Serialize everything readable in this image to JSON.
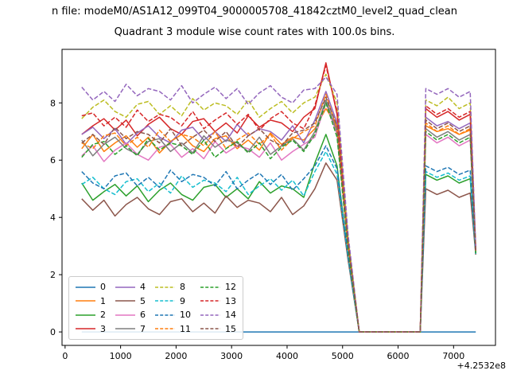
{
  "figure": {
    "suptitle": "n file: modeM0/AS1A12_099T04_9000005708_41842cztM0_level2_quad_clean",
    "title": "Quadrant 3 module wise count rates with 100.0s bins.",
    "background_color": "#ffffff"
  },
  "axes": {
    "x_ticks": [
      0,
      1000,
      2000,
      3000,
      4000,
      5000,
      6000,
      7000
    ],
    "x_tick_labels": [
      "0",
      "1000",
      "2000",
      "3000",
      "4000",
      "5000",
      "6000",
      "7000"
    ],
    "y_ticks": [
      0,
      2,
      4,
      6,
      8
    ],
    "y_tick_labels": [
      "0",
      "2",
      "4",
      "6",
      "8"
    ],
    "x_offset_label": "+4.2532e8",
    "spine_color": "#000000",
    "tick_color": "#000000"
  },
  "legend": {
    "columns": 4,
    "row_count": 4,
    "border_color": "#cccccc"
  },
  "chart_data": {
    "type": "line",
    "title": "Quadrant 3 module wise count rates with 100.0s bins.",
    "xlabel": "",
    "ylabel": "",
    "x_offset": "+4.2532e8",
    "xlim": [
      -55,
      7755
    ],
    "ylim": [
      -0.47,
      9.87
    ],
    "grid": false,
    "legend_position": "lower left",
    "x": [
      300,
      500,
      700,
      900,
      1100,
      1300,
      1500,
      1700,
      1900,
      2100,
      2300,
      2500,
      2700,
      2900,
      3100,
      3300,
      3500,
      3700,
      3900,
      4100,
      4300,
      4500,
      4700,
      4900,
      5100,
      5300,
      5500,
      5700,
      5900,
      6100,
      6300,
      6400,
      6500,
      6700,
      6900,
      7100,
      7300,
      7400
    ],
    "series": [
      {
        "name": "0",
        "color": "#1f77b4",
        "linestyle": "solid",
        "values": [
          0,
          0,
          0,
          0,
          0,
          0,
          0,
          0,
          0,
          0,
          0,
          0,
          0,
          0,
          0,
          0,
          0,
          0,
          0,
          0,
          0,
          0,
          0,
          0,
          0,
          0,
          0,
          0,
          0,
          0,
          0,
          0,
          0,
          0,
          0,
          0,
          0,
          0
        ]
      },
      {
        "name": "1",
        "color": "#ff7f0e",
        "linestyle": "solid",
        "values": [
          6.4,
          6.9,
          6.3,
          6.6,
          6.85,
          6.45,
          6.8,
          6.25,
          6.65,
          6.9,
          6.5,
          6.3,
          6.75,
          6.85,
          6.4,
          6.7,
          6.35,
          6.95,
          6.55,
          6.8,
          6.7,
          7.1,
          7.8,
          7.2,
          3.0,
          0,
          0,
          0,
          0,
          0,
          0,
          0,
          7.2,
          7.0,
          7.1,
          6.9,
          7.05,
          2.8
        ]
      },
      {
        "name": "2",
        "color": "#2ca02c",
        "linestyle": "solid",
        "values": [
          5.2,
          4.6,
          4.9,
          5.15,
          4.75,
          5.1,
          4.55,
          4.95,
          5.2,
          4.8,
          4.6,
          5.05,
          5.15,
          4.7,
          5.0,
          4.65,
          5.25,
          4.85,
          5.1,
          5.0,
          4.7,
          5.9,
          6.9,
          5.8,
          2.6,
          0,
          0,
          0,
          0,
          0,
          0,
          0,
          5.5,
          5.3,
          5.45,
          5.2,
          5.35,
          2.75
        ]
      },
      {
        "name": "3",
        "color": "#d62728",
        "linestyle": "solid",
        "values": [
          6.9,
          7.2,
          7.45,
          7.05,
          7.4,
          6.85,
          7.25,
          7.5,
          7.1,
          6.9,
          7.35,
          7.45,
          7.0,
          7.3,
          6.95,
          7.55,
          7.15,
          7.4,
          7.3,
          7.0,
          7.5,
          7.8,
          9.4,
          7.6,
          3.2,
          0,
          0,
          0,
          0,
          0,
          0,
          0,
          7.8,
          7.5,
          7.7,
          7.4,
          7.6,
          2.85
        ]
      },
      {
        "name": "4",
        "color": "#9467bd",
        "linestyle": "solid",
        "values": [
          6.9,
          7.15,
          6.75,
          7.1,
          6.55,
          6.95,
          7.2,
          6.8,
          6.6,
          7.05,
          7.15,
          6.7,
          7.0,
          6.65,
          7.25,
          6.85,
          7.1,
          7.0,
          6.7,
          7.2,
          6.6,
          7.4,
          8.4,
          7.3,
          3.0,
          0,
          0,
          0,
          0,
          0,
          0,
          0,
          7.5,
          7.2,
          7.35,
          7.1,
          7.3,
          2.8
        ]
      },
      {
        "name": "5",
        "color": "#8c564b",
        "linestyle": "solid",
        "values": [
          4.65,
          4.25,
          4.6,
          4.05,
          4.45,
          4.7,
          4.3,
          4.1,
          4.55,
          4.65,
          4.2,
          4.5,
          4.15,
          4.75,
          4.35,
          4.6,
          4.5,
          4.2,
          4.7,
          4.1,
          4.4,
          5.0,
          5.9,
          5.3,
          2.5,
          0,
          0,
          0,
          0,
          0,
          0,
          0,
          5.0,
          4.8,
          4.95,
          4.7,
          4.85,
          2.7
        ]
      },
      {
        "name": "6",
        "color": "#e377c2",
        "linestyle": "solid",
        "values": [
          6.15,
          6.5,
          5.95,
          6.35,
          6.6,
          6.2,
          6.0,
          6.45,
          6.55,
          6.1,
          6.4,
          6.05,
          6.65,
          6.25,
          6.5,
          6.4,
          6.1,
          6.6,
          6.0,
          6.3,
          6.55,
          6.8,
          8.0,
          6.9,
          2.9,
          0,
          0,
          0,
          0,
          0,
          0,
          0,
          6.9,
          6.6,
          6.8,
          6.5,
          6.7,
          2.75
        ]
      },
      {
        "name": "7",
        "color": "#7f7f7f",
        "linestyle": "solid",
        "values": [
          6.7,
          6.15,
          6.55,
          6.8,
          6.4,
          6.2,
          6.65,
          6.75,
          6.3,
          6.6,
          6.25,
          6.85,
          6.45,
          6.7,
          6.6,
          6.3,
          6.8,
          6.2,
          6.5,
          6.75,
          6.35,
          7.0,
          8.1,
          7.0,
          3.1,
          0,
          0,
          0,
          0,
          0,
          0,
          0,
          7.1,
          6.8,
          7.0,
          6.7,
          6.9,
          2.8
        ]
      },
      {
        "name": "8",
        "color": "#bcbd22",
        "linestyle": "dashed",
        "values": [
          7.45,
          7.85,
          8.1,
          7.7,
          7.5,
          7.95,
          8.05,
          7.6,
          7.9,
          7.55,
          8.15,
          7.75,
          8.0,
          7.9,
          7.6,
          8.1,
          7.5,
          7.8,
          8.05,
          7.65,
          8.0,
          8.2,
          9.0,
          8.0,
          3.3,
          0,
          0,
          0,
          0,
          0,
          0,
          0,
          8.1,
          7.9,
          8.2,
          7.8,
          8.0,
          2.9
        ]
      },
      {
        "name": "9",
        "color": "#17becf",
        "linestyle": "dashed",
        "values": [
          5.15,
          5.4,
          5.0,
          4.8,
          5.25,
          5.35,
          4.9,
          5.2,
          4.85,
          5.45,
          5.05,
          5.3,
          5.2,
          4.9,
          5.4,
          4.8,
          5.1,
          5.35,
          4.95,
          5.3,
          4.75,
          5.6,
          6.3,
          5.5,
          2.6,
          0,
          0,
          0,
          0,
          0,
          0,
          0,
          5.6,
          5.4,
          5.55,
          5.3,
          5.45,
          2.7
        ]
      },
      {
        "name": "10",
        "color": "#1f77b4",
        "linestyle": "dashed",
        "values": [
          5.6,
          5.2,
          5.0,
          5.45,
          5.55,
          5.1,
          5.4,
          5.05,
          5.65,
          5.25,
          5.5,
          5.4,
          5.1,
          5.6,
          5.0,
          5.3,
          5.55,
          5.15,
          5.5,
          4.95,
          5.35,
          5.8,
          6.5,
          5.7,
          2.7,
          0,
          0,
          0,
          0,
          0,
          0,
          0,
          5.8,
          5.6,
          5.75,
          5.5,
          5.65,
          2.75
        ]
      },
      {
        "name": "11",
        "color": "#ff7f0e",
        "linestyle": "dashed",
        "values": [
          6.6,
          6.4,
          6.85,
          6.95,
          6.5,
          6.8,
          6.45,
          7.05,
          6.65,
          6.9,
          6.8,
          6.5,
          7.0,
          6.4,
          6.7,
          6.95,
          6.55,
          6.9,
          6.35,
          6.75,
          7.0,
          7.2,
          8.3,
          7.1,
          3.0,
          0,
          0,
          0,
          0,
          0,
          0,
          0,
          7.3,
          7.0,
          7.2,
          6.9,
          7.1,
          2.8
        ]
      },
      {
        "name": "12",
        "color": "#2ca02c",
        "linestyle": "dashed",
        "values": [
          6.1,
          6.55,
          6.65,
          6.2,
          6.5,
          6.15,
          6.75,
          6.35,
          6.6,
          6.5,
          6.2,
          6.7,
          6.1,
          6.4,
          6.65,
          6.25,
          6.6,
          6.05,
          6.45,
          6.7,
          6.3,
          6.9,
          8.0,
          6.8,
          2.9,
          0,
          0,
          0,
          0,
          0,
          0,
          0,
          7.0,
          6.7,
          6.9,
          6.6,
          6.8,
          2.75
        ]
      },
      {
        "name": "13",
        "color": "#d62728",
        "linestyle": "dashed",
        "values": [
          7.55,
          7.65,
          7.2,
          7.5,
          7.15,
          7.75,
          7.35,
          7.6,
          7.5,
          7.2,
          7.7,
          7.1,
          7.4,
          7.65,
          7.25,
          7.6,
          7.05,
          7.45,
          7.7,
          7.3,
          7.1,
          7.9,
          9.3,
          7.7,
          3.2,
          0,
          0,
          0,
          0,
          0,
          0,
          0,
          7.9,
          7.6,
          7.8,
          7.5,
          7.7,
          2.85
        ]
      },
      {
        "name": "14",
        "color": "#9467bd",
        "linestyle": "dashed",
        "values": [
          8.55,
          8.1,
          8.4,
          8.05,
          8.65,
          8.25,
          8.5,
          8.4,
          8.1,
          8.6,
          8.0,
          8.3,
          8.55,
          8.15,
          8.5,
          7.95,
          8.35,
          8.6,
          8.2,
          8.0,
          8.45,
          8.5,
          8.9,
          8.3,
          3.4,
          0,
          0,
          0,
          0,
          0,
          0,
          0,
          8.5,
          8.3,
          8.5,
          8.2,
          8.4,
          2.9
        ]
      },
      {
        "name": "15",
        "color": "#8c564b",
        "linestyle": "dashed",
        "values": [
          6.6,
          6.9,
          6.55,
          7.15,
          6.75,
          7.0,
          6.9,
          6.6,
          7.1,
          6.5,
          6.8,
          7.05,
          6.65,
          7.0,
          6.45,
          6.85,
          7.1,
          6.7,
          6.5,
          6.95,
          7.05,
          7.3,
          8.2,
          7.2,
          3.1,
          0,
          0,
          0,
          0,
          0,
          0,
          0,
          7.4,
          7.1,
          7.3,
          7.0,
          7.2,
          2.8
        ]
      }
    ]
  }
}
